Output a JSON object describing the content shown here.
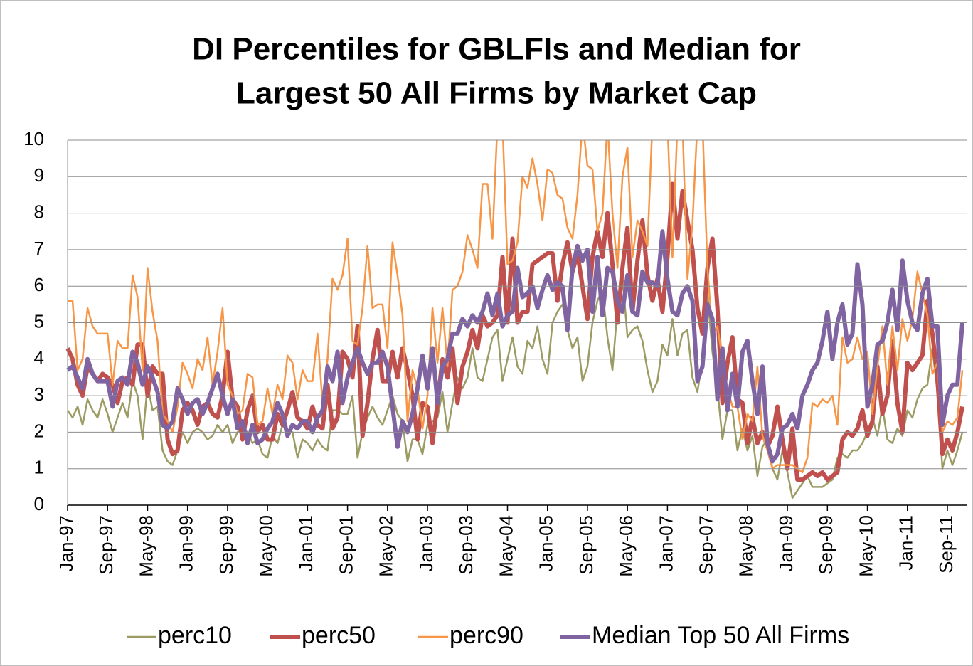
{
  "chart_data": {
    "type": "line",
    "title": [
      "DI Percentiles for GBLFIs and Median for",
      "Largest 50 All Firms by Market Cap"
    ],
    "categories": [
      "Jan-97",
      null,
      null,
      null,
      null,
      null,
      null,
      null,
      "Sep-97",
      null,
      null,
      null,
      null,
      null,
      null,
      null,
      "May-98",
      null,
      null,
      null,
      null,
      null,
      null,
      null,
      "Jan-99",
      null,
      null,
      null,
      null,
      null,
      null,
      null,
      "Sep-99",
      null,
      null,
      null,
      null,
      null,
      null,
      null,
      "May-00",
      null,
      null,
      null,
      null,
      null,
      null,
      null,
      "Jan-01",
      null,
      null,
      null,
      null,
      null,
      null,
      null,
      "Sep-01",
      null,
      null,
      null,
      null,
      null,
      null,
      null,
      "May-02",
      null,
      null,
      null,
      null,
      null,
      null,
      null,
      "Jan-03",
      null,
      null,
      null,
      null,
      null,
      null,
      null,
      "Sep-03",
      null,
      null,
      null,
      null,
      null,
      null,
      null,
      "May-04",
      null,
      null,
      null,
      null,
      null,
      null,
      null,
      "Jan-05",
      null,
      null,
      null,
      null,
      null,
      null,
      null,
      "Sep-05",
      null,
      null,
      null,
      null,
      null,
      null,
      null,
      "May-06",
      null,
      null,
      null,
      null,
      null,
      null,
      null,
      "Jan-07",
      null,
      null,
      null,
      null,
      null,
      null,
      null,
      "Sep-07",
      null,
      null,
      null,
      null,
      null,
      null,
      null,
      "May-08",
      null,
      null,
      null,
      null,
      null,
      null,
      null,
      "Jan-09",
      null,
      null,
      null,
      null,
      null,
      null,
      null,
      "Sep-09",
      null,
      null,
      null,
      null,
      null,
      null,
      null,
      "May-10",
      null,
      null,
      null,
      null,
      null,
      null,
      null,
      "Jan-11",
      null,
      null,
      null,
      null,
      null,
      null,
      null,
      "Sep-11",
      null,
      null,
      null
    ],
    "series": [
      {
        "name": "perc10",
        "color": "#9b9b63",
        "values": [
          2.6,
          2.4,
          2.7,
          2.2,
          2.9,
          2.6,
          2.4,
          2.9,
          2.5,
          2.0,
          2.4,
          2.8,
          2.4,
          3.4,
          3.0,
          1.8,
          3.3,
          2.6,
          2.7,
          1.5,
          1.2,
          1.1,
          1.5,
          2.0,
          1.7,
          2.0,
          2.1,
          2.0,
          1.8,
          1.9,
          2.2,
          2.0,
          2.2,
          1.7,
          2.0,
          2.1,
          2.0,
          1.7,
          1.8,
          1.4,
          1.3,
          1.9,
          1.7,
          2.2,
          2.0,
          2.0,
          1.3,
          1.8,
          1.7,
          1.5,
          1.8,
          1.6,
          1.5,
          2.6,
          2.6,
          2.5,
          2.5,
          3.0,
          1.3,
          2.0,
          2.4,
          2.7,
          2.4,
          2.2,
          2.6,
          3.0,
          2.5,
          2.3,
          1.2,
          1.8,
          1.8,
          1.4,
          2.2,
          2.3,
          2.4,
          3.1,
          2.0,
          2.8,
          3.5,
          3.2,
          3.5,
          4.3,
          3.5,
          3.4,
          4.0,
          4.6,
          4.8,
          3.4,
          4.0,
          4.6,
          3.8,
          3.6,
          4.5,
          4.3,
          4.9,
          4.0,
          3.6,
          5.0,
          5.3,
          5.5,
          4.8,
          4.3,
          4.6,
          3.4,
          3.8,
          5.0,
          5.6,
          5.9,
          4.6,
          3.7,
          5.4,
          6.3,
          4.6,
          4.8,
          4.9,
          4.5,
          3.7,
          3.1,
          3.4,
          4.4,
          4.1,
          5.1,
          4.1,
          4.7,
          4.8,
          3.5,
          3.1,
          4.0,
          5.8,
          4.2,
          3.2,
          1.8,
          2.6,
          2.6,
          1.5,
          2.1,
          1.5,
          1.9,
          0.8,
          1.6,
          1.8,
          1.0,
          0.7,
          1.5,
          0.9,
          0.2,
          0.4,
          0.6,
          0.8,
          0.5,
          0.5,
          0.5,
          0.6,
          0.7,
          1.3,
          1.4,
          1.3,
          1.5,
          1.5,
          1.7,
          2.0,
          2.4,
          1.9,
          2.7,
          1.8,
          1.7,
          2.1,
          1.9,
          2.6,
          2.4,
          2.9,
          3.2,
          3.3,
          4.3,
          3.1,
          1.0,
          1.5,
          1.1,
          1.5,
          2.0
        ]
      },
      {
        "name": "perc50",
        "color": "#c0504d",
        "values": [
          4.3,
          4.0,
          3.3,
          3.0,
          3.8,
          3.6,
          3.4,
          3.6,
          3.5,
          3.3,
          2.8,
          3.4,
          3.5,
          3.3,
          4.4,
          4.4,
          3.0,
          3.8,
          3.6,
          3.6,
          1.8,
          1.4,
          1.5,
          2.6,
          2.8,
          2.6,
          2.2,
          2.7,
          2.8,
          2.5,
          2.4,
          3.0,
          4.2,
          2.9,
          2.7,
          1.8,
          2.6,
          3.0,
          2.0,
          2.2,
          1.8,
          1.8,
          2.5,
          2.2,
          2.6,
          3.1,
          2.4,
          2.3,
          2.1,
          2.7,
          2.2,
          2.1,
          3.3,
          2.1,
          2.4,
          4.2,
          4.0,
          3.5,
          4.9,
          1.9,
          2.8,
          4.0,
          4.8,
          3.4,
          3.4,
          4.2,
          3.5,
          4.3,
          3.7,
          3.0,
          1.8,
          2.8,
          2.7,
          1.7,
          2.8,
          4.0,
          3.5,
          4.3,
          2.8,
          3.8,
          4.2,
          4.8,
          4.3,
          5.2,
          4.9,
          5.0,
          5.2,
          6.8,
          5.0,
          7.3,
          5.0,
          5.3,
          5.3,
          6.6,
          6.7,
          6.8,
          6.9,
          6.9,
          5.6,
          6.6,
          7.2,
          6.4,
          6.9,
          6.0,
          5.1,
          6.8,
          7.5,
          6.8,
          8.0,
          6.6,
          5.0,
          6.5,
          7.6,
          5.3,
          6.7,
          7.8,
          6.3,
          5.6,
          6.2,
          5.3,
          6.8,
          8.8,
          7.3,
          8.6,
          7.8,
          7.0,
          5.4,
          4.7,
          6.5,
          7.3,
          5.4,
          2.8,
          3.9,
          4.6,
          2.9,
          2.8,
          1.7,
          2.4,
          1.7,
          2.0,
          1.6,
          1.9,
          2.7,
          1.8,
          1.0,
          2.1,
          0.7,
          0.7,
          0.8,
          0.9,
          0.8,
          0.9,
          0.7,
          0.8,
          0.9,
          1.8,
          2.0,
          1.9,
          2.1,
          2.6,
          1.9,
          2.3,
          3.8,
          2.5,
          3.0,
          4.5,
          2.8,
          2.0,
          3.9,
          3.7,
          3.9,
          4.1,
          5.6,
          4.7,
          3.5,
          1.4,
          1.8,
          1.5,
          2.0,
          2.7
        ]
      },
      {
        "name": "perc90",
        "color": "#f79646",
        "values": [
          5.6,
          5.6,
          3.7,
          4.0,
          5.4,
          4.9,
          4.7,
          4.7,
          4.7,
          3.3,
          4.5,
          4.3,
          4.3,
          6.3,
          5.7,
          3.7,
          6.5,
          5.3,
          4.5,
          2.5,
          2.3,
          2.0,
          2.7,
          3.9,
          3.6,
          3.2,
          4.0,
          3.7,
          4.6,
          3.3,
          4.2,
          5.4,
          3.3,
          3.0,
          2.5,
          2.6,
          3.6,
          3.5,
          2.2,
          2.3,
          3.2,
          2.5,
          3.3,
          2.9,
          4.1,
          3.9,
          2.9,
          3.7,
          3.4,
          3.4,
          4.7,
          2.8,
          4.0,
          6.2,
          5.9,
          6.3,
          7.3,
          4.5,
          4.4,
          5.4,
          7.1,
          5.4,
          5.5,
          5.5,
          4.3,
          7.2,
          6.3,
          5.2,
          2.3,
          3.7,
          3.2,
          2.1,
          3.0,
          5.4,
          3.9,
          5.4,
          3.8,
          5.9,
          6.0,
          6.4,
          7.4,
          7.0,
          6.5,
          8.8,
          8.8,
          7.3,
          10.5,
          10.5,
          6.6,
          6.7,
          7.2,
          9.0,
          8.7,
          9.5,
          8.8,
          7.8,
          9.2,
          9.1,
          8.5,
          8.4,
          7.6,
          7.3,
          8.5,
          10.5,
          9.3,
          9.2,
          7.5,
          8.0,
          10.5,
          8.0,
          6.5,
          9.0,
          9.8,
          6.8,
          7.8,
          7.5,
          7.1,
          10.5,
          10.5,
          10.5,
          10.5,
          6.8,
          10.5,
          10.5,
          6.2,
          7.7,
          10.5,
          10.5,
          6.5,
          4.7,
          4.9,
          4.0,
          3.2,
          2.7,
          2.7,
          1.8,
          2.5,
          2.3,
          3.8,
          1.9,
          1.5,
          1.0,
          1.1,
          1.1,
          1.1,
          1.1,
          1.0,
          0.9,
          1.3,
          2.8,
          2.7,
          2.9,
          2.8,
          3.0,
          2.2,
          4.6,
          3.9,
          4.0,
          4.6,
          4.0,
          4.2,
          2.5,
          3.8,
          4.9,
          3.3,
          4.9,
          3.7,
          5.1,
          4.5,
          5.1,
          6.4,
          5.8,
          5.2,
          3.6,
          3.9,
          2.0,
          2.3,
          2.2,
          2.4,
          3.7
        ]
      },
      {
        "name": "Median Top 50 All Firms",
        "color": "#8064a2",
        "values": [
          3.7,
          3.8,
          3.5,
          3.2,
          4.0,
          3.6,
          3.4,
          3.4,
          3.4,
          2.7,
          3.4,
          3.5,
          3.3,
          4.2,
          3.9,
          3.3,
          3.8,
          3.5,
          3.1,
          2.2,
          2.1,
          2.3,
          3.2,
          2.9,
          2.5,
          2.8,
          2.9,
          2.5,
          2.8,
          3.2,
          3.6,
          3.0,
          2.5,
          2.9,
          2.1,
          2.3,
          1.7,
          2.2,
          1.7,
          1.8,
          2.1,
          2.3,
          2.8,
          2.5,
          1.9,
          2.2,
          2.1,
          2.3,
          2.3,
          2.0,
          2.4,
          2.6,
          3.8,
          3.4,
          4.2,
          2.8,
          3.5,
          3.9,
          4.3,
          3.9,
          3.6,
          3.9,
          3.9,
          4.2,
          3.8,
          2.7,
          1.6,
          2.3,
          2.0,
          2.5,
          3.2,
          4.1,
          3.2,
          4.3,
          2.8,
          3.8,
          4.0,
          4.7,
          4.7,
          5.1,
          4.9,
          5.2,
          5.0,
          5.3,
          5.8,
          5.2,
          5.8,
          4.9,
          5.2,
          5.3,
          6.5,
          5.7,
          5.8,
          6.0,
          5.4,
          5.9,
          6.3,
          5.9,
          6.1,
          6.0,
          4.8,
          6.5,
          7.1,
          6.7,
          7.0,
          5.3,
          6.8,
          5.2,
          6.5,
          6.4,
          5.6,
          5.3,
          6.3,
          5.3,
          5.2,
          6.4,
          6.1,
          6.1,
          6.0,
          7.5,
          6.2,
          5.3,
          5.2,
          5.8,
          6.0,
          5.6,
          3.4,
          3.8,
          5.5,
          5.1,
          2.9,
          4.3,
          2.6,
          3.6,
          2.7,
          4.2,
          4.5,
          3.4,
          2.5,
          3.8,
          1.7,
          1.2,
          1.4,
          2.1,
          2.2,
          2.5,
          2.1,
          3.0,
          3.3,
          3.7,
          3.9,
          4.5,
          5.3,
          4.0,
          5.0,
          5.5,
          4.4,
          4.7,
          6.6,
          5.5,
          2.7,
          3.3,
          4.4,
          4.5,
          5.0,
          5.9,
          4.8,
          6.7,
          5.6,
          5.0,
          4.8,
          5.8,
          6.2,
          4.9,
          4.9,
          2.2,
          3.0,
          3.3,
          3.3,
          5.0
        ]
      }
    ],
    "ylim": [
      0,
      10
    ],
    "yticks": [
      0,
      1,
      2,
      3,
      4,
      5,
      6,
      7,
      8,
      9,
      10
    ],
    "grid": true,
    "legend": "bottom"
  }
}
